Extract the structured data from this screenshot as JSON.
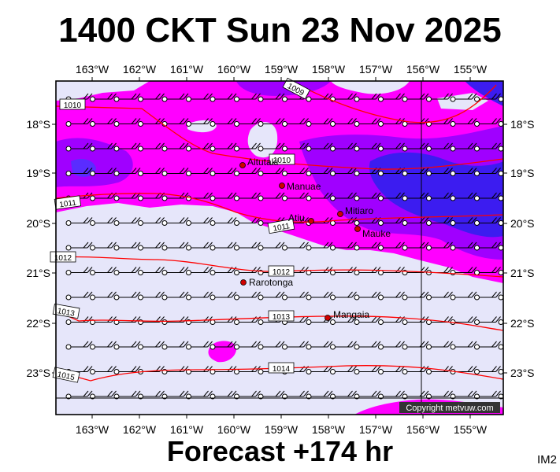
{
  "title": "1400 CKT Sun 23 Nov 2025",
  "footer": "Forecast +174 hr",
  "image_tag": "IM2",
  "copyright": "Copyright metvuw.com",
  "map": {
    "lon_labels": [
      "163°W",
      "162°W",
      "161°W",
      "160°W",
      "159°W",
      "158°W",
      "157°W",
      "156°W",
      "155°W"
    ],
    "lat_labels": [
      "18°S",
      "19°S",
      "20°S",
      "21°S",
      "22°S",
      "23°S"
    ],
    "colors": {
      "background": "#e6e6fa",
      "magenta": "#ff00ff",
      "violet": "#a000ff",
      "blue": "#3c1cf0",
      "isobar": "#ff0000"
    },
    "places": [
      {
        "name": "Aitutaki"
      },
      {
        "name": "Manuae"
      },
      {
        "name": "Mitiaro"
      },
      {
        "name": "Atiu"
      },
      {
        "name": "Mauke"
      },
      {
        "name": "Rarotonga"
      },
      {
        "name": "Mangaia"
      }
    ],
    "isobar_labels": [
      "1009",
      "1010",
      "1010",
      "1011",
      "1011",
      "1012",
      "1012",
      "1013",
      "1013",
      "1014",
      "1015"
    ]
  }
}
